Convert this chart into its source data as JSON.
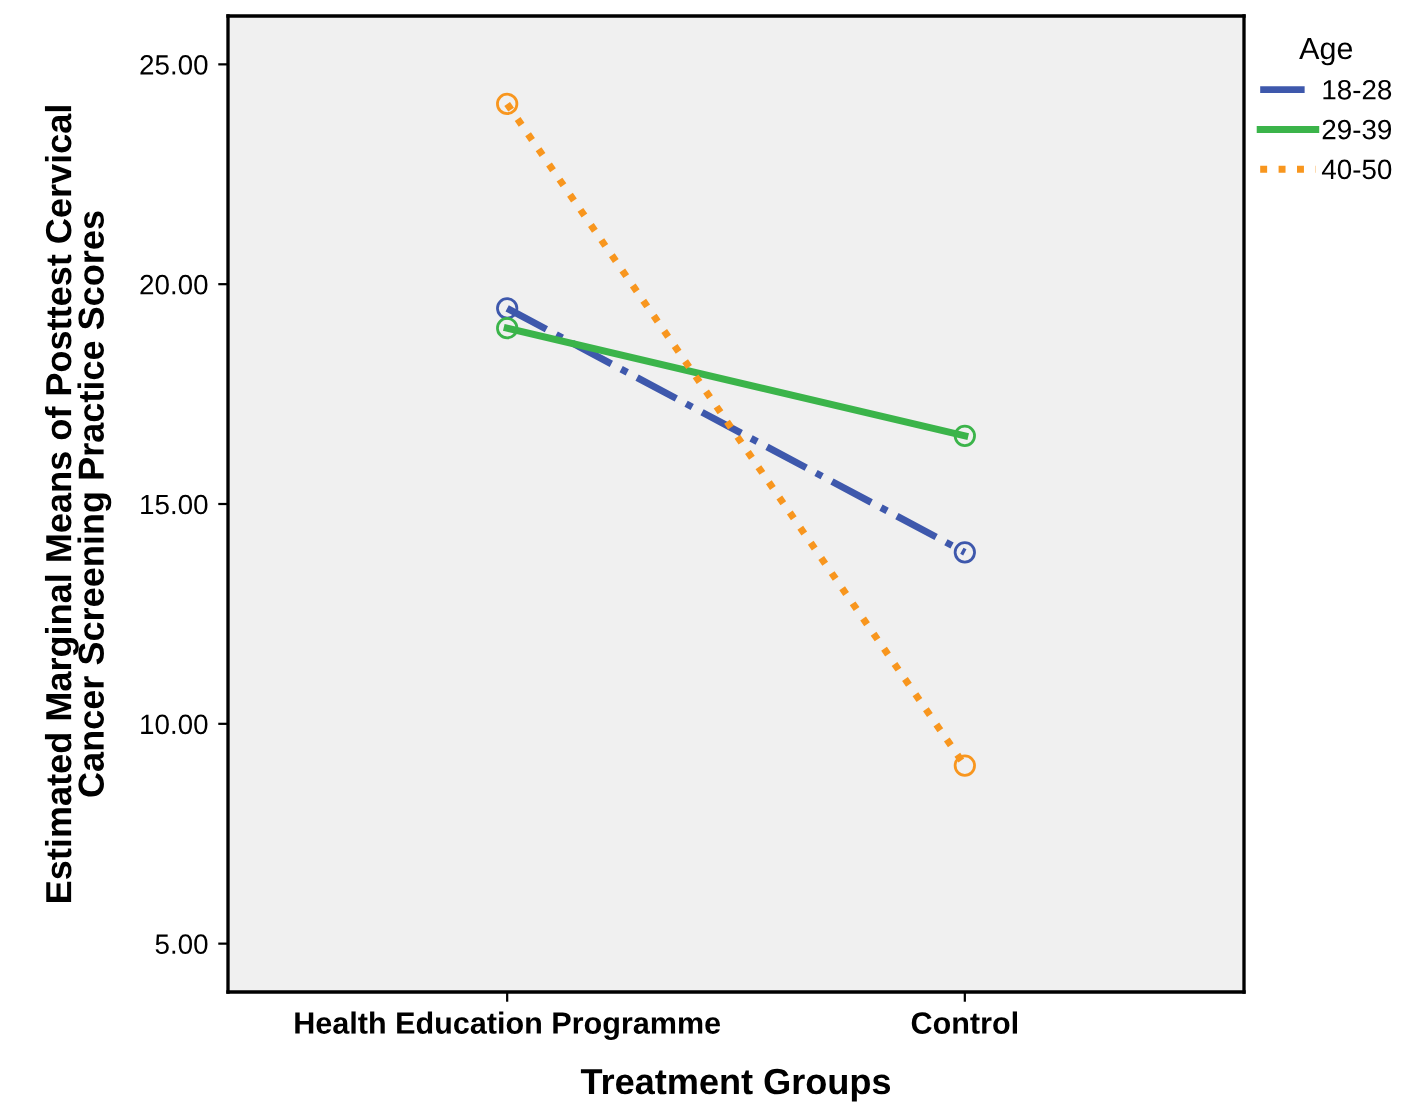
{
  "chart_data": {
    "type": "line",
    "xlabel": "Treatment Groups",
    "ylabel": "Estimated Marginal Means of Posttest Cervical\nCancer Screening Practice Scores",
    "legend_title": "Age",
    "legend": "right",
    "marker": "circle",
    "grid": false,
    "categories": [
      "Health Education Programme",
      "Control"
    ],
    "ylim": [
      3.9,
      26.1
    ],
    "yticks": [
      {
        "value": 5,
        "label": "5.00"
      },
      {
        "value": 10,
        "label": "10.00"
      },
      {
        "value": 15,
        "label": "15.00"
      },
      {
        "value": 20,
        "label": "20.00"
      },
      {
        "value": 25,
        "label": "25.00"
      }
    ],
    "series": [
      {
        "name": "18-28",
        "color": "#3e58ac",
        "line_style": "dashdot",
        "values": [
          19.45,
          13.9
        ]
      },
      {
        "name": "29-39",
        "color": "#3bb44a",
        "line_style": "solid",
        "values": [
          19.0,
          16.55
        ]
      },
      {
        "name": "40-50",
        "color": "#f8961e",
        "line_style": "dotted",
        "values": [
          24.1,
          9.05
        ]
      }
    ]
  }
}
